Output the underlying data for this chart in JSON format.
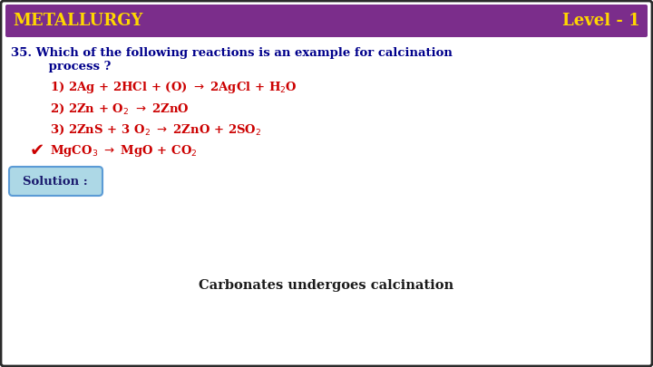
{
  "title_left": "METALLURGY",
  "title_right": "Level - 1",
  "title_bg": "#7B2D8B",
  "title_text_color": "#FFD700",
  "question_line1": "35. Which of the following reactions is an example for calcination",
  "question_line2": "         process ?",
  "question_color": "#00008B",
  "option1": "1) 2Ag + 2HCl + (O) $\\rightarrow$ 2AgCl + H$_2$O",
  "option2": "2) 2Zn + O$_2$ $\\rightarrow$ 2ZnO",
  "option3": "3) 2ZnS + 3 O$_2$ $\\rightarrow$ 2ZnO + 2SO$_2$",
  "option4_check": "MgCO$_3$ $\\rightarrow$ MgO + CO$_2$",
  "options_color": "#CC0000",
  "checkmark": "✔",
  "solution_label": "Solution :",
  "solution_bg": "#ADD8E6",
  "solution_text_color": "#1a1a6e",
  "solution_border_color": "#5B9BD5",
  "answer_text": "Carbonates undergoes calcination",
  "answer_color": "#1a1a1a",
  "bg_color": "#FFFFFF",
  "border_color": "#2a2a2a"
}
